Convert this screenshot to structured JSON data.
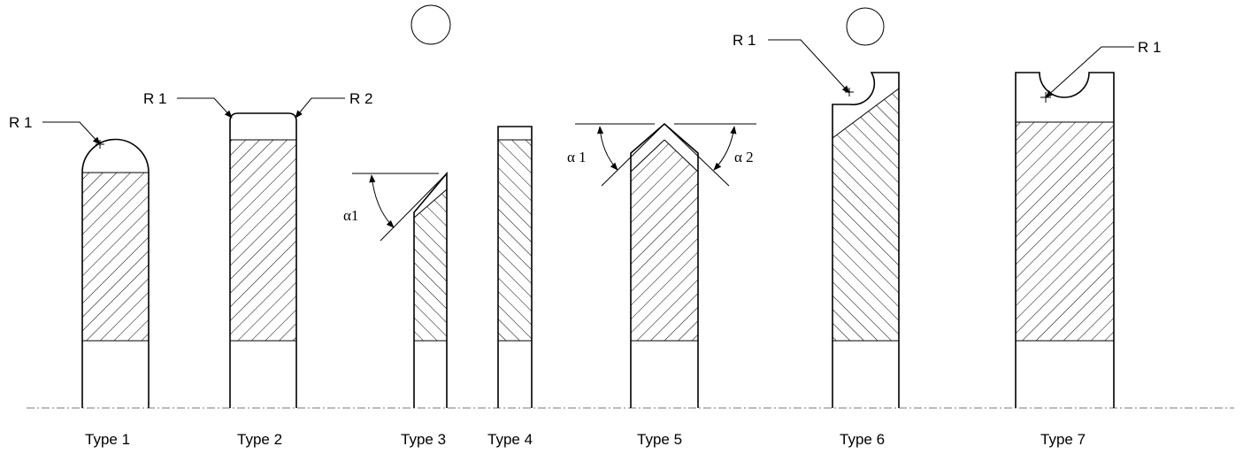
{
  "types": [
    {
      "label": "Type 1"
    },
    {
      "label": "Type 2"
    },
    {
      "label": "Type 3"
    },
    {
      "label": "Type 4"
    },
    {
      "label": "Type 5"
    },
    {
      "label": "Type 6"
    },
    {
      "label": "Type 7"
    }
  ],
  "annotations": {
    "r1": "R 1",
    "r2": "R 2",
    "alpha1_compact": "α1",
    "alpha1": "α 1",
    "alpha2": "α 2"
  }
}
